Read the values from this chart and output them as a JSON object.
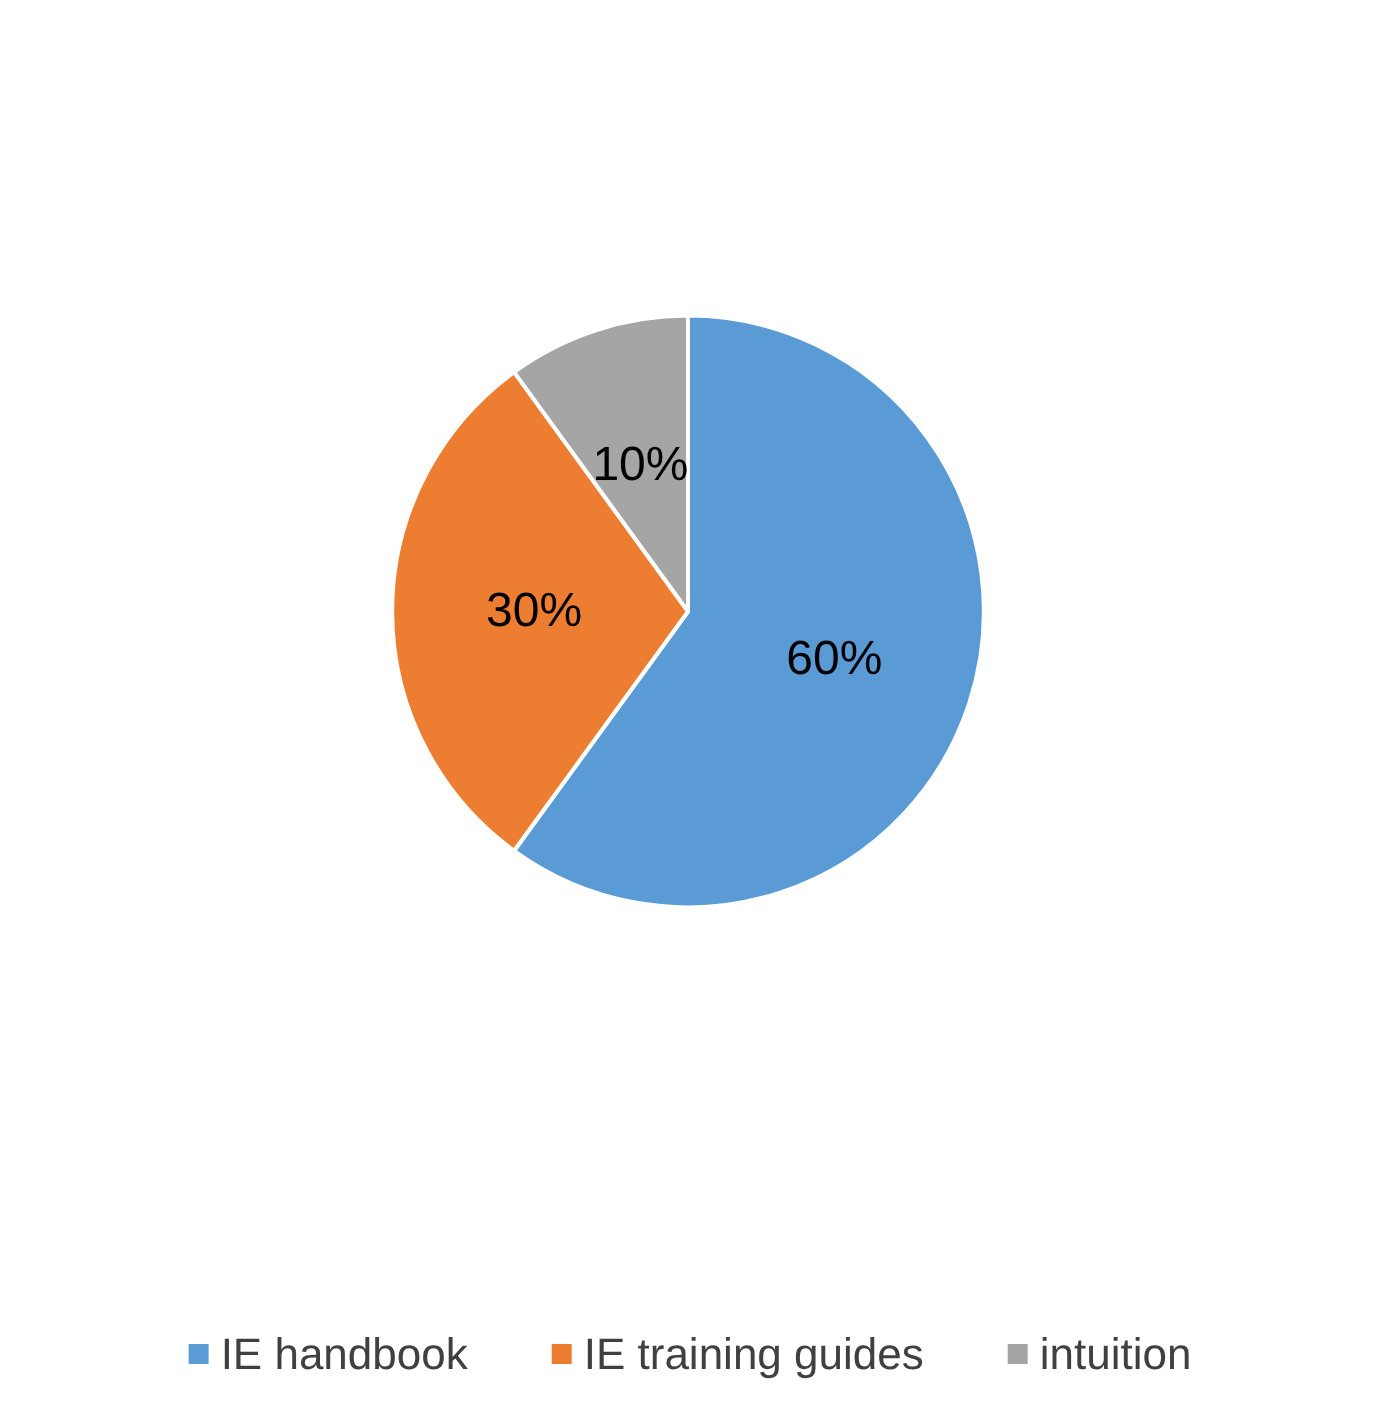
{
  "chart_data": {
    "type": "pie",
    "categories": [
      "IE handbook",
      "IE training guides",
      "intuition"
    ],
    "values": [
      60,
      30,
      10
    ],
    "colors": [
      "#5b9bd5",
      "#ed7d31",
      "#a5a5a5"
    ],
    "value_labels": [
      "60%",
      "30%",
      "10%"
    ],
    "legend": "bottom"
  }
}
